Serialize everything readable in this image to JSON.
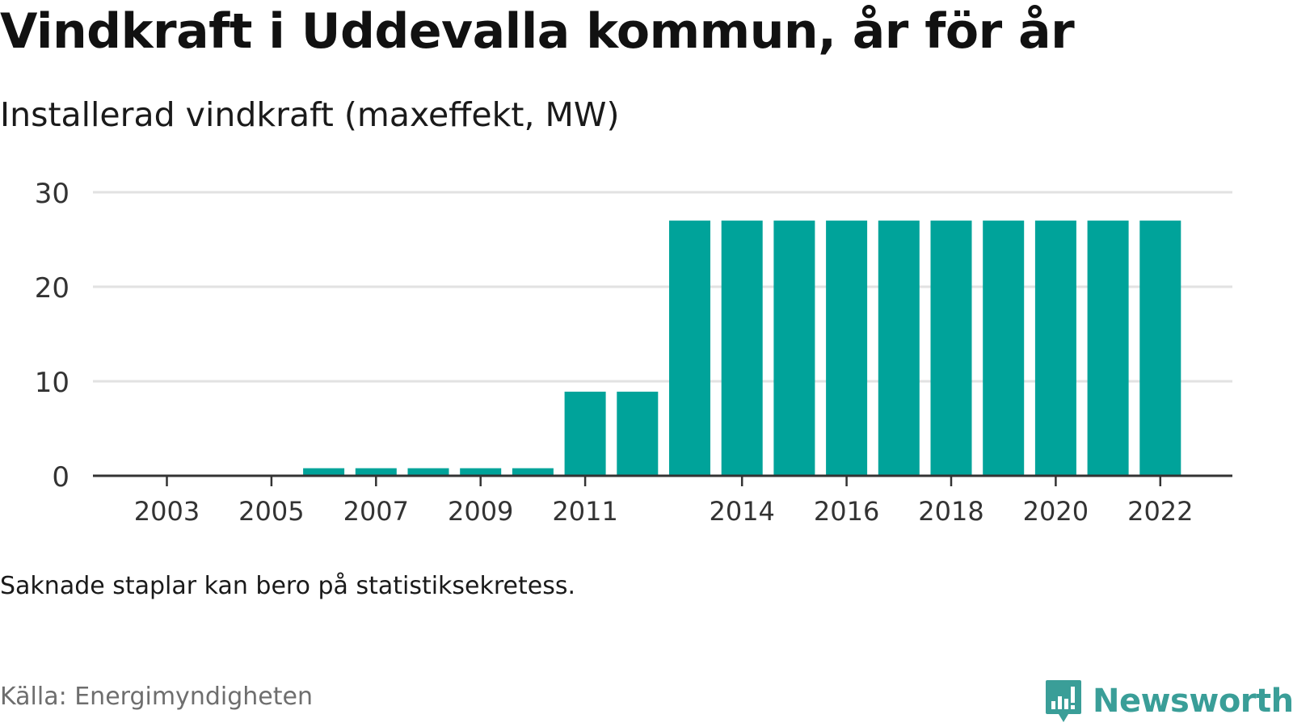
{
  "title": "Vindkraft i Uddevalla kommun, år för år",
  "subtitle": "Installerad vindkraft (maxeffekt, MW)",
  "note": "Saknade staplar kan bero på statistiksekretess.",
  "source": "Källa: Energimyndigheten",
  "brand": {
    "name": "Newsworthy",
    "color": "#3a9e98",
    "icon": "bar-chart-speech-bubble-icon"
  },
  "chart_data": {
    "type": "bar",
    "categories": [
      2003,
      2004,
      2005,
      2006,
      2007,
      2008,
      2009,
      2010,
      2011,
      2012,
      2013,
      2014,
      2015,
      2016,
      2017,
      2018,
      2019,
      2020,
      2021,
      2022
    ],
    "values": [
      null,
      null,
      null,
      0.8,
      0.8,
      0.8,
      0.8,
      0.8,
      8.9,
      8.9,
      27,
      27,
      27,
      27,
      27,
      27,
      27,
      27,
      27,
      27
    ],
    "xticks": [
      "2003",
      "2005",
      "2007",
      "2009",
      "2011",
      "2014",
      "2016",
      "2018",
      "2020",
      "2022"
    ],
    "yticks": [
      0,
      10,
      20,
      30
    ],
    "ylim": [
      0,
      30
    ],
    "bar_color": "#00a39a",
    "grid": true
  }
}
